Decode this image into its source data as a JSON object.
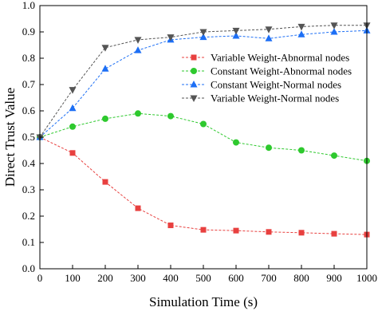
{
  "chart_data": {
    "type": "line",
    "xlabel": "Simulation Time (s)",
    "ylabel": "Direct Trust Value",
    "xlim": [
      0,
      1000
    ],
    "ylim": [
      0,
      1.0
    ],
    "xticks": [
      0,
      100,
      200,
      300,
      400,
      500,
      600,
      700,
      800,
      900,
      1000
    ],
    "yticks": [
      0.0,
      0.1,
      0.2,
      0.3,
      0.4,
      0.5,
      0.6,
      0.7,
      0.8,
      0.9,
      1.0
    ],
    "grid": false,
    "legend_position": "top-right",
    "x": [
      0,
      100,
      200,
      300,
      400,
      500,
      600,
      700,
      800,
      900,
      1000
    ],
    "series": [
      {
        "name": "Variable Weight-Abnormal nodes",
        "color": "#e8403f",
        "marker": "square",
        "values": [
          0.5,
          0.44,
          0.33,
          0.23,
          0.165,
          0.148,
          0.145,
          0.14,
          0.137,
          0.133,
          0.13
        ]
      },
      {
        "name": "Constant Weight-Abnormal nodes",
        "color": "#2ec92e",
        "marker": "circle",
        "values": [
          0.5,
          0.54,
          0.57,
          0.59,
          0.58,
          0.55,
          0.48,
          0.46,
          0.45,
          0.43,
          0.41
        ]
      },
      {
        "name": "Constant Weight-Normal nodes",
        "color": "#1d6ff5",
        "marker": "triangle-up",
        "values": [
          0.5,
          0.61,
          0.76,
          0.83,
          0.87,
          0.88,
          0.885,
          0.875,
          0.89,
          0.9,
          0.905
        ]
      },
      {
        "name": "Variable Weight-Normal nodes",
        "color": "#555555",
        "marker": "triangle-down",
        "values": [
          0.5,
          0.68,
          0.84,
          0.87,
          0.88,
          0.9,
          0.905,
          0.91,
          0.92,
          0.925,
          0.925
        ]
      }
    ]
  }
}
